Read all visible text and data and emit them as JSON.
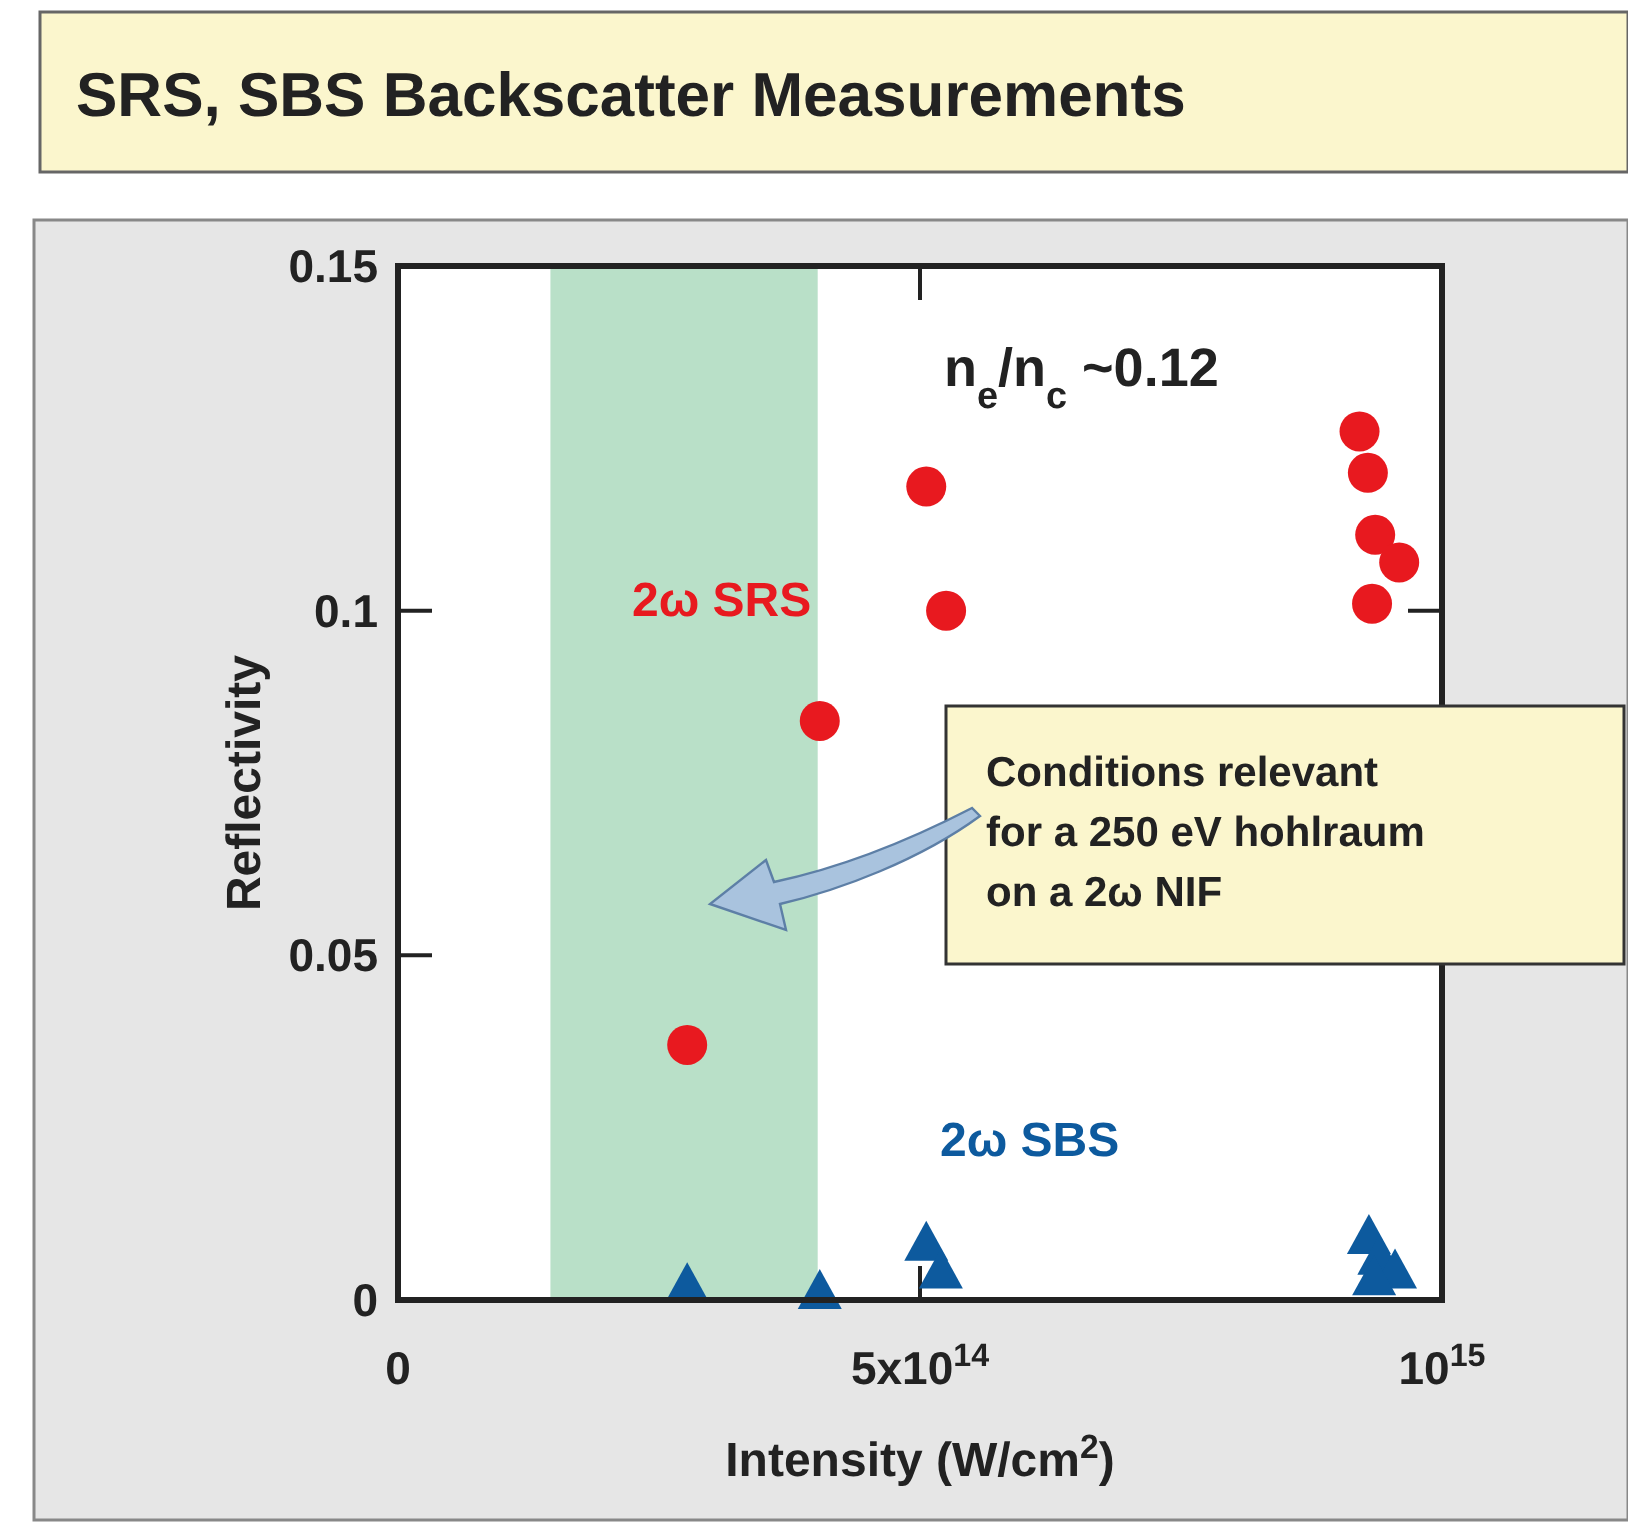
{
  "chart_data": {
    "type": "scatter",
    "title": "SRS, SBS Backscatter Measurements",
    "xlabel": "Intensity (W/cm$^{2}$)",
    "ylabel": "Reflectivity",
    "xlim": [
      0,
      1000000000000000.0
    ],
    "ylim": [
      0,
      0.15
    ],
    "xticks": [
      0,
      {
        "value": 500000000000000.0,
        "label": "5x10$^{14}$"
      },
      {
        "value": 1000000000000000.0,
        "label": "10$^{15}$"
      }
    ],
    "yticks": [
      0,
      0.05,
      0.1,
      0.15
    ],
    "grid": false,
    "legend": false,
    "series": [
      {
        "name": "2ω SRS",
        "color": "#e8191f",
        "marker": "circle",
        "x": [
          277000000000000.0,
          404000000000000.0,
          506000000000000.0,
          525000000000000.0,
          921000000000000.0,
          929000000000000.0,
          936000000000000.0,
          959000000000000.0,
          933000000000000.0
        ],
        "values": [
          0.037,
          0.084,
          0.118,
          0.1,
          0.126,
          0.12,
          0.111,
          0.107,
          0.101
        ]
      },
      {
        "name": "2ω SBS",
        "color": "#0d5a9e",
        "marker": "triangle",
        "x": [
          277000000000000.0,
          404000000000000.0,
          506000000000000.0,
          520000000000000.0,
          930000000000000.0,
          940000000000000.0,
          955000000000000.0,
          935000000000000.0
        ],
        "values": [
          0.002,
          0.001,
          0.008,
          0.004,
          0.009,
          0.006,
          0.004,
          0.003
        ]
      }
    ],
    "bands": [
      {
        "axis": "x",
        "from": 146000000000000.0,
        "to": 402000000000000.0,
        "color": "#b9e0c8"
      }
    ],
    "annotations": [
      "n$_{e}$/n$_{c}$ ~0.12",
      "Conditions relevant\nfor a 250 eV hohlraum\non a 2ω NIF"
    ]
  }
}
